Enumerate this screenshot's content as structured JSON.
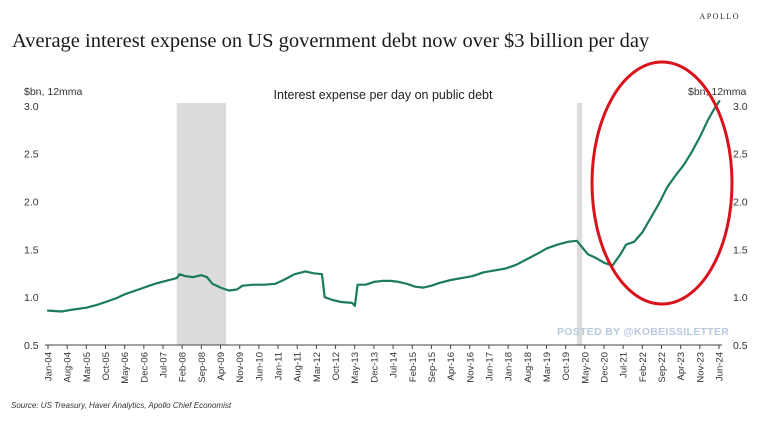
{
  "brand": "APOLLO",
  "title": "Average interest expense on US government debt now over $3 billion per day",
  "source": "Source: US Treasury, Haver Analytics, Apollo Chief Economist",
  "watermark": "POSTED BY @KOBEISSILETTER",
  "colors": {
    "line": "#1c7a5e",
    "recession": "#dcdcdc",
    "highlight": "#d9121b",
    "watermark": "#b9c9e0"
  },
  "chart_data": {
    "type": "line",
    "subtitle": "Interest expense per day on public debt",
    "ylabel_left": "$bn, 12mma",
    "ylabel_right": "$bn, 12mma",
    "ylim": [
      0.5,
      3.25
    ],
    "yticks": [
      0.5,
      1.0,
      1.5,
      2.0,
      2.5,
      3.0
    ],
    "ytick_labels": [
      "0.5",
      "1.0",
      "1.5",
      "2.0",
      "2.5",
      "3.0"
    ],
    "xlim": [
      "2004-01",
      "2024-07"
    ],
    "xtick_labels": [
      "Jan-04",
      "Aug-04",
      "Mar-05",
      "Oct-05",
      "May-06",
      "Dec-06",
      "Jul-07",
      "Feb-08",
      "Sep-08",
      "Apr-09",
      "Nov-09",
      "Jun-10",
      "Jan-11",
      "Aug-11",
      "Mar-12",
      "Oct-12",
      "May-13",
      "Dec-13",
      "Jul-14",
      "Feb-15",
      "Sep-15",
      "Apr-16",
      "Nov-16",
      "Jun-17",
      "Jan-18",
      "Aug-18",
      "Mar-19",
      "Oct-19",
      "May-20",
      "Dec-20",
      "Jul-21",
      "Feb-22",
      "Sep-22",
      "Apr-23",
      "Nov-23",
      "Jun-24"
    ],
    "recessions": [
      [
        "2007-12",
        "2009-06"
      ],
      [
        "2020-02",
        "2020-04"
      ]
    ],
    "annotation": "red ellipse highlighting 2021-2024 surge",
    "series": [
      {
        "points": [
          [
            "2004-01",
            0.86
          ],
          [
            "2004-06",
            0.85
          ],
          [
            "2004-10",
            0.87
          ],
          [
            "2005-03",
            0.89
          ],
          [
            "2005-07",
            0.92
          ],
          [
            "2005-10",
            0.95
          ],
          [
            "2006-02",
            0.99
          ],
          [
            "2006-05",
            1.03
          ],
          [
            "2006-09",
            1.07
          ],
          [
            "2006-12",
            1.1
          ],
          [
            "2007-04",
            1.14
          ],
          [
            "2007-08",
            1.17
          ],
          [
            "2007-12",
            1.2
          ],
          [
            "2008-01",
            1.24
          ],
          [
            "2008-03",
            1.22
          ],
          [
            "2008-06",
            1.21
          ],
          [
            "2008-09",
            1.23
          ],
          [
            "2008-11",
            1.21
          ],
          [
            "2009-01",
            1.14
          ],
          [
            "2009-04",
            1.1
          ],
          [
            "2009-07",
            1.07
          ],
          [
            "2009-10",
            1.08
          ],
          [
            "2009-12",
            1.12
          ],
          [
            "2010-04",
            1.13
          ],
          [
            "2010-08",
            1.13
          ],
          [
            "2010-12",
            1.14
          ],
          [
            "2011-03",
            1.18
          ],
          [
            "2011-07",
            1.24
          ],
          [
            "2011-11",
            1.27
          ],
          [
            "2012-02",
            1.25
          ],
          [
            "2012-05",
            1.24
          ],
          [
            "2012-06",
            1.0
          ],
          [
            "2012-09",
            0.97
          ],
          [
            "2012-12",
            0.95
          ],
          [
            "2013-04",
            0.94
          ],
          [
            "2013-05",
            0.91
          ],
          [
            "2013-06",
            1.13
          ],
          [
            "2013-09",
            1.13
          ],
          [
            "2013-12",
            1.16
          ],
          [
            "2014-03",
            1.17
          ],
          [
            "2014-06",
            1.17
          ],
          [
            "2014-09",
            1.16
          ],
          [
            "2014-12",
            1.14
          ],
          [
            "2015-03",
            1.11
          ],
          [
            "2015-06",
            1.1
          ],
          [
            "2015-09",
            1.12
          ],
          [
            "2015-12",
            1.15
          ],
          [
            "2016-04",
            1.18
          ],
          [
            "2016-08",
            1.2
          ],
          [
            "2016-12",
            1.22
          ],
          [
            "2017-04",
            1.26
          ],
          [
            "2017-08",
            1.28
          ],
          [
            "2017-12",
            1.3
          ],
          [
            "2018-04",
            1.34
          ],
          [
            "2018-08",
            1.4
          ],
          [
            "2018-12",
            1.46
          ],
          [
            "2019-03",
            1.51
          ],
          [
            "2019-07",
            1.55
          ],
          [
            "2019-11",
            1.58
          ],
          [
            "2020-02",
            1.59
          ],
          [
            "2020-04",
            1.52
          ],
          [
            "2020-06",
            1.45
          ],
          [
            "2020-09",
            1.41
          ],
          [
            "2020-12",
            1.36
          ],
          [
            "2021-03",
            1.33
          ],
          [
            "2021-06",
            1.45
          ],
          [
            "2021-08",
            1.55
          ],
          [
            "2021-11",
            1.58
          ],
          [
            "2022-02",
            1.68
          ],
          [
            "2022-05",
            1.83
          ],
          [
            "2022-08",
            1.98
          ],
          [
            "2022-11",
            2.15
          ],
          [
            "2023-02",
            2.27
          ],
          [
            "2023-05",
            2.38
          ],
          [
            "2023-08",
            2.52
          ],
          [
            "2023-11",
            2.68
          ],
          [
            "2024-02",
            2.86
          ],
          [
            "2024-04",
            2.96
          ],
          [
            "2024-06",
            3.05
          ]
        ]
      }
    ]
  }
}
